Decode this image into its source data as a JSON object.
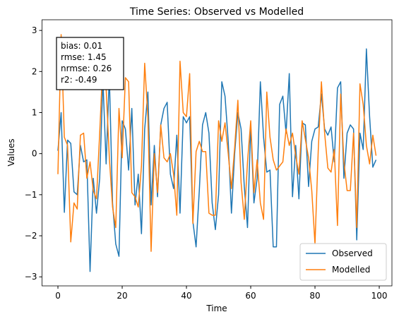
{
  "chart_data": {
    "type": "line",
    "title": "Time Series: Observed vs Modelled",
    "x_label": "Time",
    "y_label": "Values",
    "x": [
      0,
      1,
      2,
      3,
      4,
      5,
      6,
      7,
      8,
      9,
      10,
      11,
      12,
      13,
      14,
      15,
      16,
      17,
      18,
      19,
      20,
      21,
      22,
      23,
      24,
      25,
      26,
      27,
      28,
      29,
      30,
      31,
      32,
      33,
      34,
      35,
      36,
      37,
      38,
      39,
      40,
      41,
      42,
      43,
      44,
      45,
      46,
      47,
      48,
      49,
      50,
      51,
      52,
      53,
      54,
      55,
      56,
      57,
      58,
      59,
      60,
      61,
      62,
      63,
      64,
      65,
      66,
      67,
      68,
      69,
      70,
      71,
      72,
      73,
      74,
      75,
      76,
      77,
      78,
      79,
      80,
      81,
      82,
      83,
      84,
      85,
      86,
      87,
      88,
      89,
      90,
      91,
      92,
      93,
      94,
      95,
      96,
      97,
      98,
      99
    ],
    "series": [
      {
        "name": "Observed",
        "color": "#1f77b4",
        "values": [
          0.07,
          1.0,
          -1.43,
          0.33,
          0.25,
          -0.93,
          -1.0,
          0.2,
          -0.2,
          -0.15,
          -2.87,
          -0.6,
          -1.45,
          -0.6,
          1.8,
          -0.25,
          1.9,
          -1.2,
          -2.2,
          -2.5,
          0.8,
          0.6,
          -0.4,
          1.1,
          -1.25,
          -0.5,
          -1.95,
          0.6,
          1.5,
          -1.25,
          0.2,
          -1.05,
          0.7,
          1.1,
          1.25,
          -0.5,
          -0.85,
          0.45,
          -1.45,
          0.9,
          0.75,
          0.9,
          -1.65,
          -2.27,
          -0.9,
          0.7,
          1.0,
          0.5,
          -1.2,
          -1.85,
          -1.0,
          1.75,
          1.4,
          0.3,
          -1.45,
          0.0,
          1.0,
          0.6,
          -0.8,
          -1.8,
          0.7,
          -1.2,
          -0.6,
          1.75,
          0.4,
          -0.45,
          -0.4,
          -2.27,
          -2.27,
          1.2,
          1.4,
          0.5,
          1.95,
          -1.05,
          0.2,
          -1.1,
          0.75,
          0.7,
          -0.8,
          0.3,
          0.6,
          0.65,
          1.45,
          0.6,
          0.45,
          0.65,
          -0.2,
          1.6,
          1.75,
          -0.6,
          0.5,
          0.7,
          0.6,
          -2.1,
          0.5,
          0.1,
          2.55,
          0.9,
          -0.33,
          -0.15
        ]
      },
      {
        "name": "Modelled",
        "color": "#ff7f0e",
        "values": [
          -0.5,
          2.9,
          0.4,
          0.2,
          -2.15,
          -1.2,
          -1.35,
          0.45,
          0.5,
          -0.6,
          -0.2,
          -0.9,
          -1.1,
          0.5,
          2.25,
          1.6,
          -0.1,
          -1.3,
          -1.8,
          1.1,
          -0.1,
          1.85,
          1.75,
          -0.95,
          -1.05,
          -1.3,
          -0.3,
          2.2,
          0.9,
          -2.38,
          0.0,
          -0.95,
          0.7,
          -0.1,
          -0.2,
          0.0,
          -0.5,
          -1.5,
          2.25,
          1.0,
          0.9,
          1.95,
          -1.7,
          0.05,
          0.3,
          0.05,
          0.05,
          -1.45,
          -1.5,
          -1.5,
          0.8,
          0.3,
          0.75,
          0.0,
          -0.85,
          0.15,
          1.3,
          -0.7,
          -1.6,
          -0.2,
          0.8,
          -0.95,
          -0.15,
          -1.2,
          -1.6,
          1.5,
          0.4,
          -0.15,
          -0.4,
          -0.3,
          -0.2,
          0.6,
          0.2,
          0.5,
          -0.05,
          -0.5,
          0.8,
          0.35,
          -0.1,
          -0.9,
          -2.2,
          0.05,
          1.75,
          0.5,
          -0.35,
          -0.45,
          0.1,
          -1.75,
          1.45,
          -0.2,
          -0.9,
          -0.9,
          0.5,
          -1.8,
          1.7,
          1.2,
          0.2,
          -0.25,
          0.45,
          -0.05
        ]
      }
    ],
    "xlim": [
      -4.95,
      103.95
    ],
    "xticks": [
      0,
      20,
      40,
      60,
      80,
      100
    ],
    "ylim": [
      -3.22,
      3.26
    ],
    "yticks": [
      {
        "value": -3,
        "label": "−3"
      },
      {
        "value": -2,
        "label": "−2"
      },
      {
        "value": -1,
        "label": "−1"
      },
      0,
      1,
      2,
      3
    ],
    "annotation": [
      "bias: 0.01",
      "rmse: 1.45",
      "nrmse: 0.26",
      "r2: -0.49"
    ],
    "legend": "lower right",
    "grid": false
  }
}
